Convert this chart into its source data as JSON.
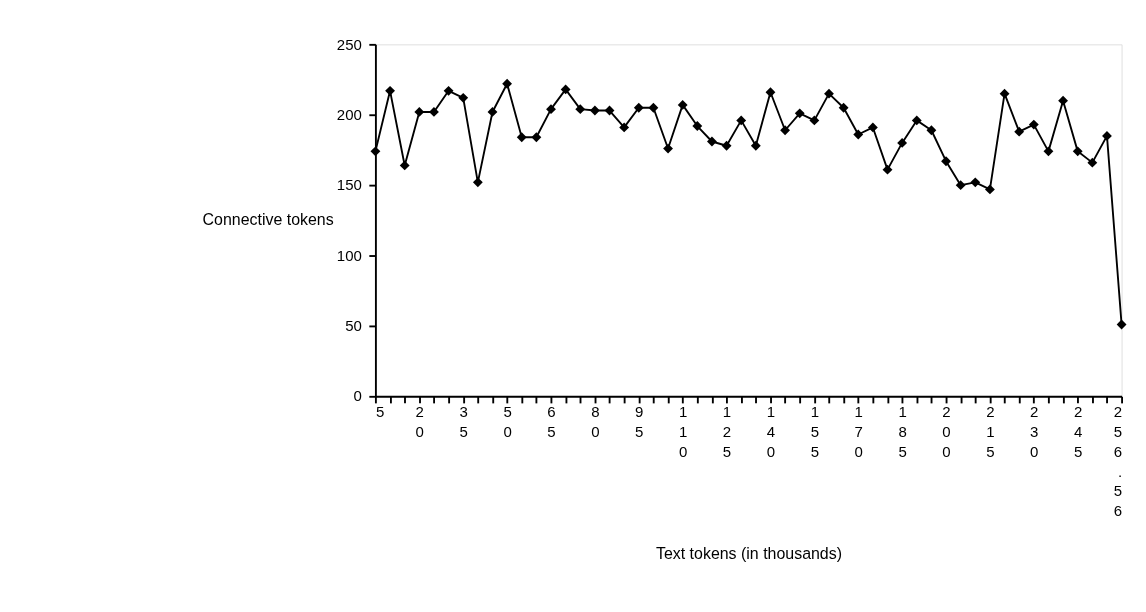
{
  "chart_data": {
    "type": "line",
    "xlabel": "Text tokens (in thousands)",
    "ylabel": "Connective tokens",
    "categories": [
      "5",
      null,
      null,
      "20",
      null,
      null,
      "35",
      null,
      null,
      "50",
      null,
      null,
      "65",
      null,
      null,
      "80",
      null,
      null,
      "95",
      null,
      null,
      "110",
      null,
      null,
      "125",
      null,
      null,
      "140",
      null,
      null,
      "155",
      null,
      null,
      "170",
      null,
      null,
      "185",
      null,
      null,
      "200",
      null,
      null,
      "215",
      null,
      null,
      "230",
      null,
      null,
      "245",
      null,
      null,
      "256.56"
    ],
    "series": [
      {
        "color": "#000000",
        "values": [
          174,
          217,
          164,
          202,
          202,
          217,
          212,
          152,
          202,
          222,
          184,
          184,
          204,
          218,
          204,
          203,
          203,
          191,
          205,
          205,
          176,
          207,
          192,
          181,
          178,
          196,
          178,
          216,
          189,
          201,
          196,
          215,
          205,
          186,
          191,
          161,
          180,
          196,
          189,
          167,
          150,
          152,
          147,
          215,
          188,
          193,
          174,
          210,
          174,
          166,
          185,
          51
        ]
      }
    ],
    "ylim": [
      0,
      250
    ],
    "yticks": [
      0,
      50,
      100,
      150,
      200,
      250
    ],
    "grid": false,
    "legend": false,
    "marker": "diamond",
    "line_style": "solid"
  }
}
